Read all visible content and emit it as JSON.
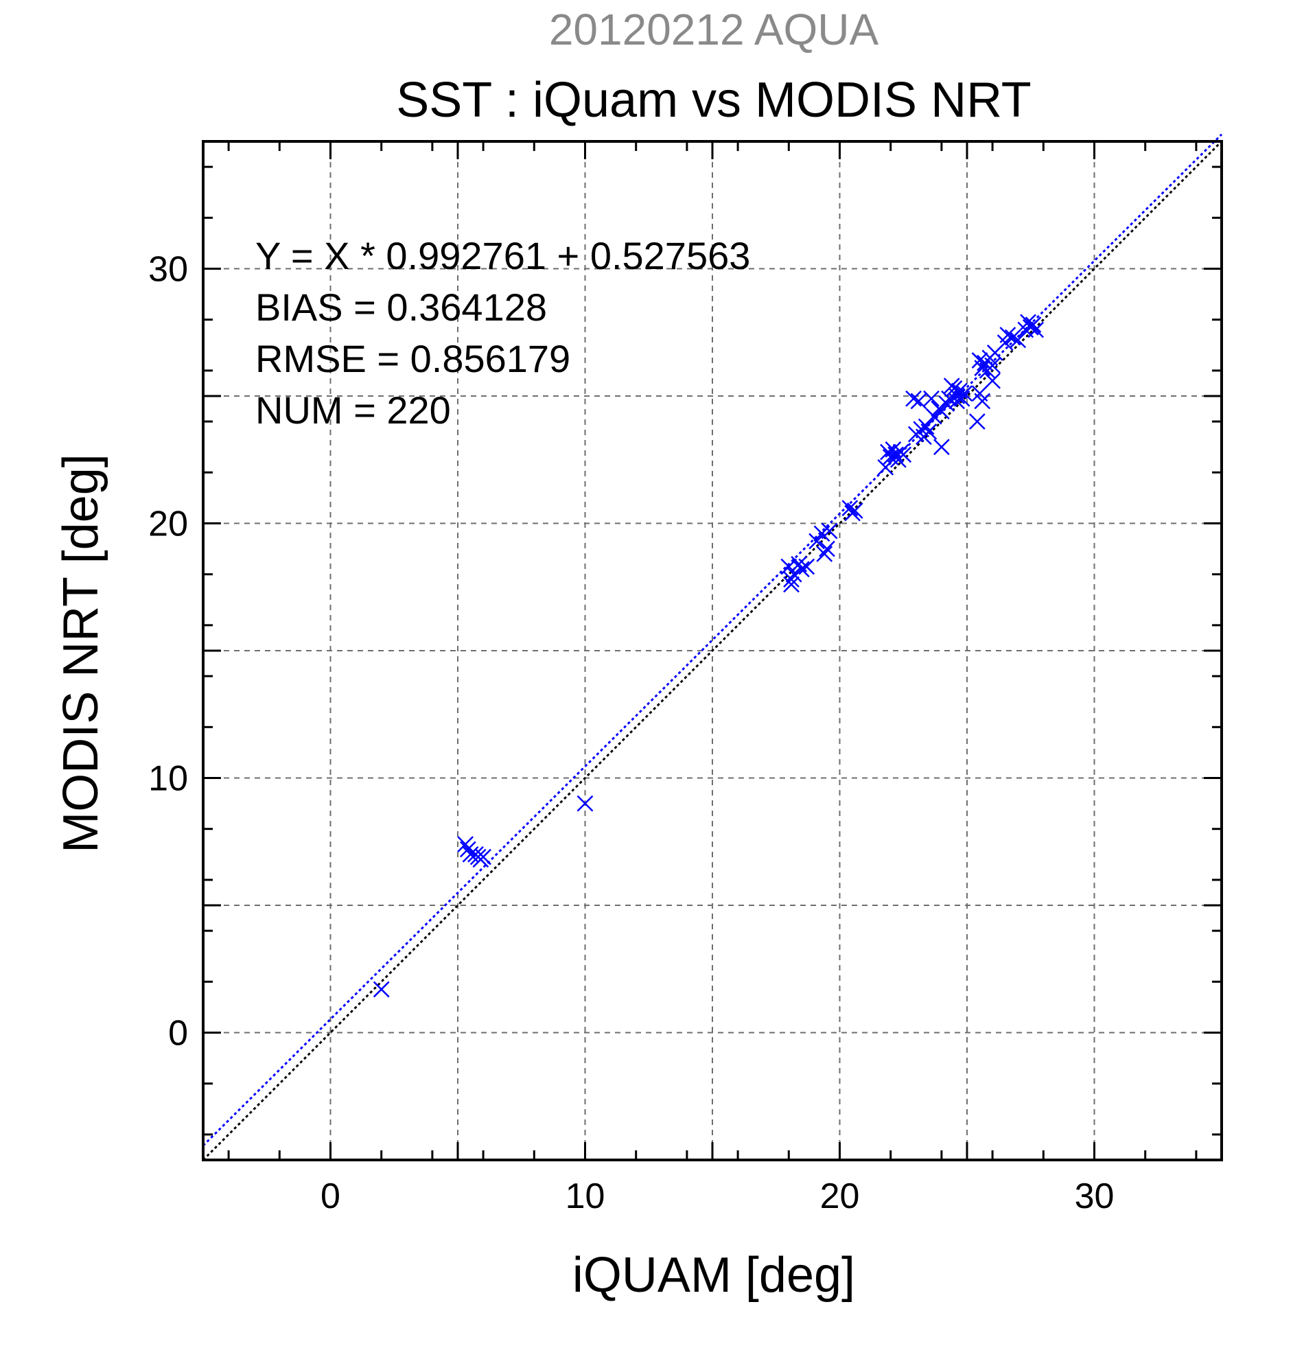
{
  "chart_data": {
    "type": "scatter",
    "suptitle": "20120212 AQUA",
    "title": "SST : iQuam vs MODIS NRT",
    "xlabel": "iQUAM [deg]",
    "ylabel": "MODIS NRT [deg]",
    "xlim": [
      -5,
      35
    ],
    "ylim": [
      -5,
      35
    ],
    "xticks": [
      0,
      10,
      20,
      30
    ],
    "yticks": [
      0,
      10,
      20,
      30
    ],
    "grid": true,
    "stats": [
      "Y = X * 0.992761 + 0.527563",
      "BIAS = 0.364128",
      "RMSE = 0.856179",
      "NUM = 220"
    ],
    "reference_line": {
      "slope": 1,
      "intercept": 0,
      "color": "#000000"
    },
    "fit_line": {
      "slope": 0.992761,
      "intercept": 0.527563,
      "color": "#0000ff"
    },
    "marker_color": "#0000ff",
    "series": [
      {
        "points": [
          [
            2.0,
            1.7
          ],
          [
            5.3,
            7.4
          ],
          [
            5.4,
            7.2
          ],
          [
            5.5,
            7.0
          ],
          [
            5.7,
            7.0
          ],
          [
            5.8,
            6.9
          ],
          [
            5.9,
            6.8
          ],
          [
            6.0,
            6.9
          ],
          [
            10.0,
            9.0
          ],
          [
            18.0,
            18.3
          ],
          [
            18.1,
            17.8
          ],
          [
            18.1,
            17.6
          ],
          [
            18.2,
            18.0
          ],
          [
            18.4,
            18.4
          ],
          [
            18.5,
            18.2
          ],
          [
            18.7,
            18.3
          ],
          [
            19.1,
            19.3
          ],
          [
            19.3,
            19.6
          ],
          [
            19.4,
            18.8
          ],
          [
            19.5,
            19.0
          ],
          [
            19.6,
            19.7
          ],
          [
            20.4,
            20.6
          ],
          [
            20.5,
            20.4
          ],
          [
            20.6,
            20.5
          ],
          [
            21.8,
            22.2
          ],
          [
            21.9,
            22.8
          ],
          [
            22.0,
            22.6
          ],
          [
            22.1,
            22.9
          ],
          [
            22.2,
            22.7
          ],
          [
            22.3,
            22.5
          ],
          [
            22.4,
            22.8
          ],
          [
            22.5,
            22.7
          ],
          [
            22.9,
            24.9
          ],
          [
            23.1,
            24.8
          ],
          [
            23.0,
            23.5
          ],
          [
            23.2,
            23.7
          ],
          [
            23.3,
            23.4
          ],
          [
            23.4,
            23.8
          ],
          [
            23.5,
            23.6
          ],
          [
            23.6,
            24.9
          ],
          [
            23.7,
            24.2
          ],
          [
            23.9,
            24.5
          ],
          [
            24.0,
            24.4
          ],
          [
            24.0,
            23.0
          ],
          [
            24.2,
            24.7
          ],
          [
            24.3,
            24.9
          ],
          [
            24.5,
            25.3
          ],
          [
            24.6,
            25.0
          ],
          [
            24.7,
            25.2
          ],
          [
            24.8,
            24.9
          ],
          [
            24.9,
            25.1
          ],
          [
            24.4,
            25.4
          ],
          [
            24.6,
            24.8
          ],
          [
            25.4,
            24.0
          ],
          [
            25.5,
            25.1
          ],
          [
            25.6,
            24.8
          ],
          [
            25.6,
            26.1
          ],
          [
            25.7,
            26.3
          ],
          [
            25.8,
            26.0
          ],
          [
            25.9,
            26.5
          ],
          [
            26.0,
            26.2
          ],
          [
            26.1,
            26.7
          ],
          [
            26.0,
            25.6
          ],
          [
            25.5,
            26.4
          ],
          [
            26.5,
            27.1
          ],
          [
            26.6,
            27.4
          ],
          [
            26.8,
            27.3
          ],
          [
            27.0,
            27.2
          ],
          [
            27.3,
            27.6
          ],
          [
            27.4,
            27.9
          ],
          [
            27.5,
            27.7
          ],
          [
            27.6,
            27.8
          ],
          [
            27.7,
            27.6
          ]
        ]
      }
    ]
  }
}
